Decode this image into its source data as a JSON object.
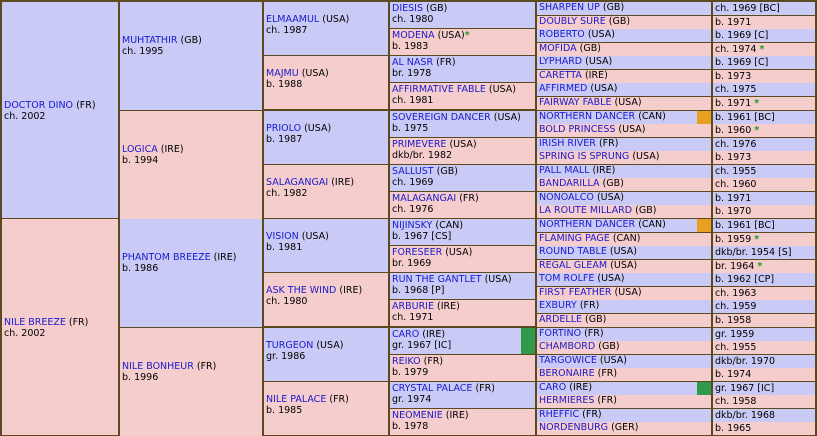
{
  "colors": {
    "male_bg": "#cacaf6",
    "female_bg": "#f6cdcd",
    "border": "#5a4a1e",
    "name_link": "#1a1acc",
    "star": "#1c9a1c",
    "badge_orange": "#e8a020",
    "badge_green": "#2f9a4a"
  },
  "gen1": [
    {
      "name": "DOCTOR DINO",
      "country": "(FR)",
      "info": "ch. 2002"
    },
    {
      "name": "NILE BREEZE",
      "country": "(FR)",
      "info": "ch. 2002"
    }
  ],
  "gen2": [
    {
      "name": "MUHTATHIR",
      "country": "(GB)",
      "info": "ch. 1995"
    },
    {
      "name": "LOGICA",
      "country": "(IRE)",
      "info": "b. 1994"
    },
    {
      "name": "PHANTOM BREEZE",
      "country": "(IRE)",
      "info": "b. 1986"
    },
    {
      "name": "NILE BONHEUR",
      "country": "(FR)",
      "info": "b. 1996"
    }
  ],
  "gen3": [
    {
      "name": "ELMAAMUL",
      "country": "(USA)",
      "info": "ch. 1987"
    },
    {
      "name": "MAJMU",
      "country": "(USA)",
      "info": "b. 1988"
    },
    {
      "name": "PRIOLO",
      "country": "(USA)",
      "info": "b. 1987"
    },
    {
      "name": "SALAGANGAI",
      "country": "(IRE)",
      "info": "ch. 1982"
    },
    {
      "name": "VISION",
      "country": "(USA)",
      "info": "b. 1981"
    },
    {
      "name": "ASK THE WIND",
      "country": "(IRE)",
      "info": "ch. 1980"
    },
    {
      "name": "TURGEON",
      "country": "(USA)",
      "info": "gr. 1986"
    },
    {
      "name": "NILE PALACE",
      "country": "(FR)",
      "info": "b. 1985"
    }
  ],
  "gen4": [
    {
      "name": "DIESIS",
      "country": "(GB)",
      "info": "ch. 1980",
      "star": ""
    },
    {
      "name": "MODENA",
      "country": "(USA)",
      "info": "b. 1983",
      "star": "*"
    },
    {
      "name": "AL NASR",
      "country": "(FR)",
      "info": "br. 1978",
      "star": ""
    },
    {
      "name": "AFFIRMATIVE FABLE",
      "country": "(USA)",
      "info": "ch. 1981",
      "star": ""
    },
    {
      "name": "SOVEREIGN DANCER",
      "country": "(USA)",
      "info": "b. 1975",
      "star": ""
    },
    {
      "name": "PRIMEVERE",
      "country": "(USA)",
      "info": "dkb/br. 1982",
      "star": ""
    },
    {
      "name": "SALLUST",
      "country": "(GB)",
      "info": "ch. 1969",
      "star": ""
    },
    {
      "name": "MALAGANGAI",
      "country": "(FR)",
      "info": "ch. 1976",
      "star": ""
    },
    {
      "name": "NIJINSKY",
      "country": "(CAN)",
      "info": "b. 1967 [CS]",
      "star": ""
    },
    {
      "name": "FORESEER",
      "country": "(USA)",
      "info": "br. 1969",
      "star": ""
    },
    {
      "name": "RUN THE GANTLET",
      "country": "(USA)",
      "info": "b. 1968 [P]",
      "star": ""
    },
    {
      "name": "ARBURIE",
      "country": "(IRE)",
      "info": "ch. 1971",
      "star": ""
    },
    {
      "name": "CARO",
      "country": "(IRE)",
      "info": "gr. 1967 [IC]",
      "star": ""
    },
    {
      "name": "REIKO",
      "country": "(FR)",
      "info": "b. 1979",
      "star": ""
    },
    {
      "name": "CRYSTAL PALACE",
      "country": "(FR)",
      "info": "gr. 1974",
      "star": ""
    },
    {
      "name": "NEOMENIE",
      "country": "(IRE)",
      "info": "b. 1978",
      "star": ""
    }
  ],
  "gen5": [
    {
      "name": "SHARPEN UP",
      "country": "(GB)",
      "info": "ch. 1969 [BC]",
      "star": ""
    },
    {
      "name": "DOUBLY SURE",
      "country": "(GB)",
      "info": "b. 1971",
      "star": ""
    },
    {
      "name": "ROBERTO",
      "country": "(USA)",
      "info": "b. 1969 [C]",
      "star": ""
    },
    {
      "name": "MOFIDA",
      "country": "(GB)",
      "info": "ch. 1974",
      "star": "*"
    },
    {
      "name": "LYPHARD",
      "country": "(USA)",
      "info": "b. 1969 [C]",
      "star": ""
    },
    {
      "name": "CARETTA",
      "country": "(IRE)",
      "info": "b. 1973",
      "star": ""
    },
    {
      "name": "AFFIRMED",
      "country": "(USA)",
      "info": "ch. 1975",
      "star": ""
    },
    {
      "name": "FAIRWAY FABLE",
      "country": "(USA)",
      "info": "b. 1971",
      "star": "*"
    },
    {
      "name": "NORTHERN DANCER",
      "country": "(CAN)",
      "info": "b. 1961 [BC]",
      "star": ""
    },
    {
      "name": "BOLD PRINCESS",
      "country": "(USA)",
      "info": "b. 1960",
      "star": "*"
    },
    {
      "name": "IRISH RIVER",
      "country": "(FR)",
      "info": "ch. 1976",
      "star": ""
    },
    {
      "name": "SPRING IS SPRUNG",
      "country": "(USA)",
      "info": "b. 1973",
      "star": ""
    },
    {
      "name": "PALL MALL",
      "country": "(IRE)",
      "info": "ch. 1955",
      "star": ""
    },
    {
      "name": "BANDARILLA",
      "country": "(GB)",
      "info": "ch. 1960",
      "star": ""
    },
    {
      "name": "NONOALCO",
      "country": "(USA)",
      "info": "b. 1971",
      "star": ""
    },
    {
      "name": "LA ROUTE MILLARD",
      "country": "(GB)",
      "info": "b. 1970",
      "star": ""
    },
    {
      "name": "NORTHERN DANCER",
      "country": "(CAN)",
      "info": "b. 1961 [BC]",
      "star": ""
    },
    {
      "name": "FLAMING PAGE",
      "country": "(CAN)",
      "info": "b. 1959",
      "star": "*"
    },
    {
      "name": "ROUND TABLE",
      "country": "(USA)",
      "info": "dkb/br. 1954 [S]",
      "star": ""
    },
    {
      "name": "REGAL GLEAM",
      "country": "(USA)",
      "info": "br. 1964",
      "star": "*"
    },
    {
      "name": "TOM ROLFE",
      "country": "(USA)",
      "info": "b. 1962 [CP]",
      "star": ""
    },
    {
      "name": "FIRST FEATHER",
      "country": "(USA)",
      "info": "ch. 1963",
      "star": ""
    },
    {
      "name": "EXBURY",
      "country": "(FR)",
      "info": "ch. 1959",
      "star": ""
    },
    {
      "name": "ARDELLE",
      "country": "(GB)",
      "info": "b. 1958",
      "star": ""
    },
    {
      "name": "FORTINO",
      "country": "(FR)",
      "info": "gr. 1959",
      "star": ""
    },
    {
      "name": "CHAMBORD",
      "country": "(GB)",
      "info": "ch. 1955",
      "star": ""
    },
    {
      "name": "TARGOWICE",
      "country": "(USA)",
      "info": "dkb/br. 1970",
      "star": ""
    },
    {
      "name": "BERONAIRE",
      "country": "(FR)",
      "info": "b. 1974",
      "star": ""
    },
    {
      "name": "CARO",
      "country": "(IRE)",
      "info": "gr. 1967 [IC]",
      "star": ""
    },
    {
      "name": "HERMIERES",
      "country": "(FR)",
      "info": "ch. 1958",
      "star": ""
    },
    {
      "name": "RHEFFIC",
      "country": "(FR)",
      "info": "dkb/br. 1968",
      "star": ""
    },
    {
      "name": "NORDENBURG",
      "country": "(GER)",
      "info": "b. 1965",
      "star": ""
    }
  ]
}
